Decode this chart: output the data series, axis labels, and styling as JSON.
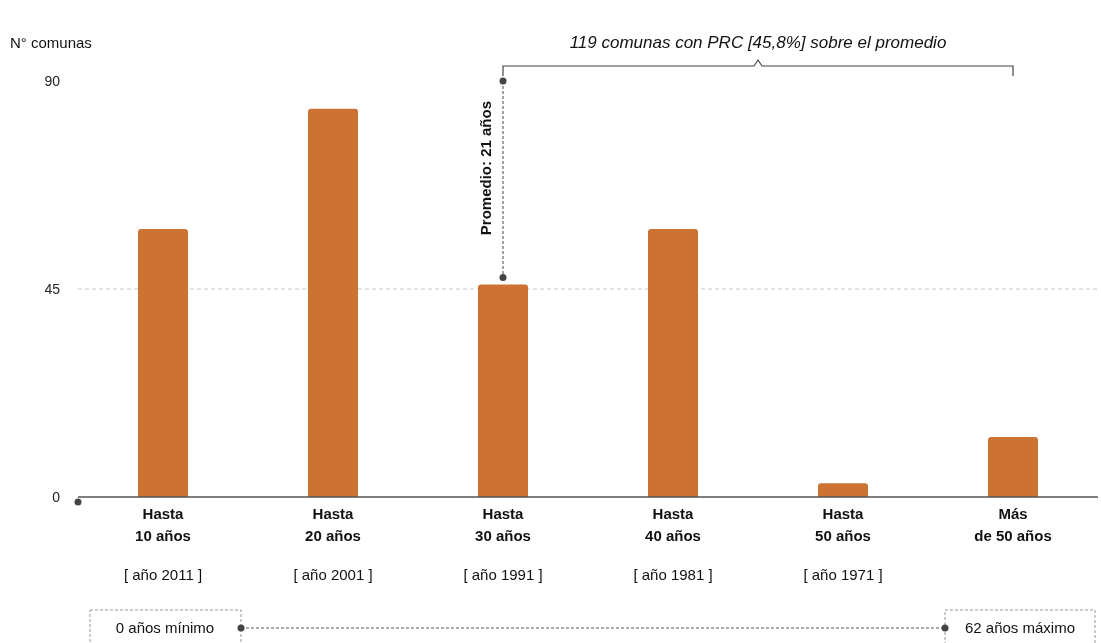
{
  "chart_data": {
    "type": "bar",
    "ylabel": "N° comunas",
    "categories": [
      "Hasta\n10 años\n[ año 2011 ]",
      "Hasta\n20 años\n[ año 2001 ]",
      "Hasta\n30 años\n[ año 1991 ]",
      "Hasta\n40 años\n[ año 1981 ]",
      "Hasta\n50 años\n[ año 1971 ]",
      "Más\nde 50 años"
    ],
    "values": [
      58,
      84,
      46,
      58,
      3,
      13
    ],
    "color": "#cc7333",
    "ylim": [
      0,
      90
    ],
    "yticks": [
      0,
      45,
      90
    ],
    "grid": "y",
    "annotations": [
      "119 comunas con PRC [45,8%] sobre el promedio",
      "Promedio: 21 años",
      "0 años mínimo",
      "62 años máximo"
    ]
  }
}
